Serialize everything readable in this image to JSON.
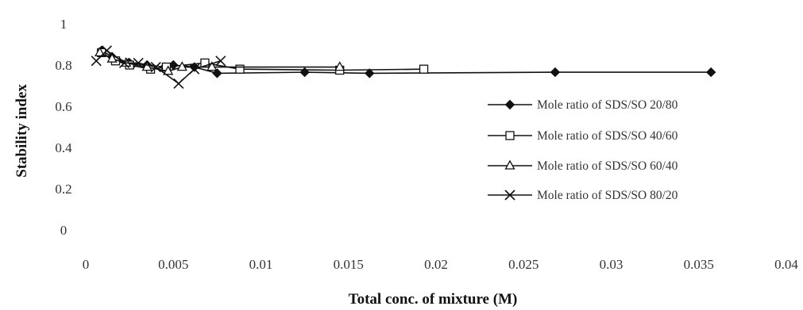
{
  "chart_data": {
    "type": "line",
    "title": "",
    "xlabel": "Total conc. of mixture (M)",
    "ylabel": "Stability index",
    "xlim": [
      0,
      0.04
    ],
    "ylim": [
      0,
      1
    ],
    "x_ticks": [
      "0",
      "0.005",
      "0.01",
      "0.015",
      "0.02",
      "0.025",
      "0.03",
      "0.035",
      "0.04"
    ],
    "y_ticks": [
      "0",
      "0.2",
      "0.4",
      "0.6",
      "0.8",
      "1"
    ],
    "grid": false,
    "legend_position": "right",
    "series": [
      {
        "name": "Mole ratio of SDS/SO 20/80",
        "marker": "diamond",
        "x": [
          0.0009,
          0.0015,
          0.0025,
          0.0035,
          0.0045,
          0.005,
          0.0062,
          0.0075,
          0.0125,
          0.0162,
          0.0268,
          0.0357
        ],
        "y": [
          0.87,
          0.84,
          0.81,
          0.8,
          0.79,
          0.8,
          0.79,
          0.76,
          0.765,
          0.76,
          0.765,
          0.765
        ]
      },
      {
        "name": "Mole ratio of SDS/SO 40/60",
        "marker": "square",
        "x": [
          0.0009,
          0.0017,
          0.0025,
          0.0037,
          0.0046,
          0.0068,
          0.0088,
          0.0145,
          0.0193
        ],
        "y": [
          0.86,
          0.82,
          0.8,
          0.78,
          0.79,
          0.81,
          0.78,
          0.775,
          0.78
        ]
      },
      {
        "name": "Mole ratio of SDS/SO 60/40",
        "marker": "triangle",
        "x": [
          0.0008,
          0.0015,
          0.0023,
          0.0035,
          0.0047,
          0.0055,
          0.0072,
          0.0145
        ],
        "y": [
          0.86,
          0.83,
          0.81,
          0.79,
          0.77,
          0.79,
          0.79,
          0.79
        ]
      },
      {
        "name": "Mole ratio of SDS/SO 80/20",
        "marker": "x",
        "x": [
          0.0006,
          0.0012,
          0.0022,
          0.003,
          0.004,
          0.0053,
          0.0062,
          0.0077
        ],
        "y": [
          0.82,
          0.87,
          0.81,
          0.81,
          0.79,
          0.71,
          0.78,
          0.82
        ]
      }
    ]
  }
}
